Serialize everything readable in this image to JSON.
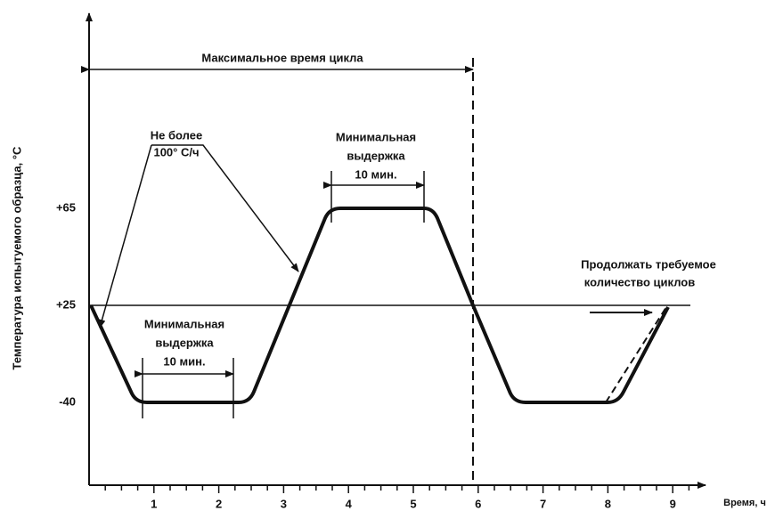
{
  "axes": {
    "y_label": "Температура испытуемого образца, °С",
    "x_label": "Время, ч",
    "y_ticks": [
      "+65",
      "+25",
      "-40"
    ],
    "x_ticks": [
      "1",
      "2",
      "3",
      "4",
      "5",
      "6",
      "7",
      "8",
      "9"
    ]
  },
  "annotations": {
    "max_cycle": "Максимальное время цикла",
    "rate": [
      "Не более",
      "100° С/ч"
    ],
    "hold_top": [
      "Минимальная",
      "выдержка",
      "10 мин."
    ],
    "hold_bottom": [
      "Минимальная",
      "выдержка",
      "10 мин."
    ],
    "continue": [
      "Продолжать требуемое",
      "количество циклов"
    ]
  }
}
